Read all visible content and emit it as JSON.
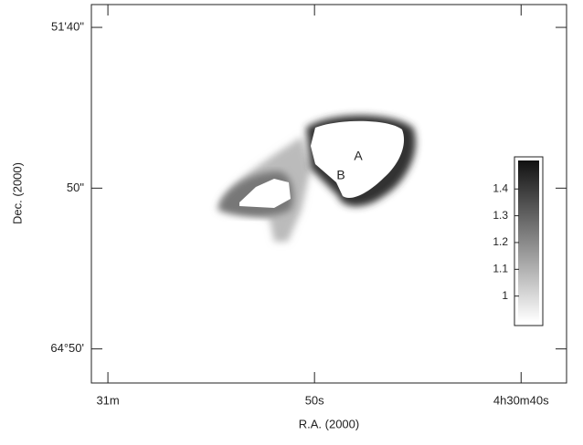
{
  "chart_data": {
    "type": "image",
    "xlabel": "R.A. (2000)",
    "ylabel": "Dec. (2000)",
    "xlim": [
      60.8,
      37.8
    ],
    "xticks": [
      {
        "value": 60,
        "label": "31m"
      },
      {
        "value": 50,
        "label": "50s"
      },
      {
        "value": 40,
        "label": "4h30m40s"
      }
    ],
    "ylim": [
      -10.6,
      107.1
    ],
    "yticks": [
      {
        "value": 100,
        "label": "51'40\""
      },
      {
        "value": 50,
        "label": "50\""
      },
      {
        "value": 0,
        "label": "64°50'"
      }
    ],
    "annotations": [
      "A",
      "B"
    ],
    "colorbar": {
      "ylim": [
        0.89,
        1.52
      ],
      "yticks": [
        1,
        1.1,
        1.2,
        1.3,
        1.4
      ]
    }
  }
}
